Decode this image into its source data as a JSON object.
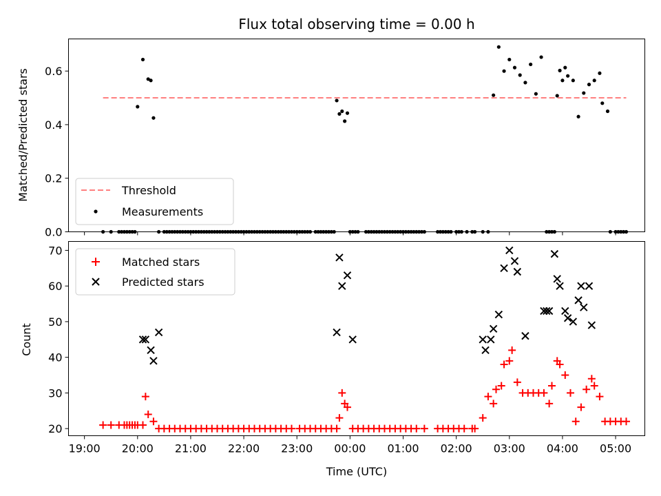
{
  "chart_data": [
    {
      "type": "scatter",
      "title": "Flux total observing time = 0.00 h",
      "ylabel": "Matched/Predicted stars",
      "xlabel": "",
      "xlim": [
        -0.3,
        10.55
      ],
      "ylim": [
        0.0,
        0.72
      ],
      "yticks": [
        0.0,
        0.2,
        0.4,
        0.6
      ],
      "ytick_labels": [
        "0.0",
        "0.2",
        "0.4",
        "0.6"
      ],
      "xticks": [
        0,
        1,
        2,
        3,
        4,
        5,
        6,
        7,
        8,
        9,
        10
      ],
      "grid": false,
      "legend_position": "lower-left",
      "threshold": {
        "name": "Threshold",
        "value": 0.5,
        "x_range": [
          0.35,
          10.2
        ],
        "color": "#ff7f7f"
      },
      "measurements": {
        "name": "Measurements",
        "color": "#000000",
        "x": [
          0.35,
          0.5,
          0.65,
          0.7,
          0.75,
          0.8,
          0.85,
          0.9,
          0.95,
          1.0,
          1.1,
          1.2,
          1.25,
          1.3,
          1.4,
          1.5,
          1.55,
          1.6,
          1.65,
          1.7,
          1.75,
          1.8,
          1.85,
          1.9,
          1.95,
          2.0,
          2.05,
          2.1,
          2.15,
          2.2,
          2.25,
          2.3,
          2.35,
          2.4,
          2.45,
          2.5,
          2.55,
          2.6,
          2.65,
          2.7,
          2.75,
          2.8,
          2.85,
          2.9,
          2.95,
          3.0,
          3.05,
          3.1,
          3.15,
          3.2,
          3.25,
          3.3,
          3.35,
          3.4,
          3.45,
          3.5,
          3.55,
          3.6,
          3.65,
          3.7,
          3.75,
          3.8,
          3.85,
          3.9,
          3.95,
          4.0,
          4.05,
          4.1,
          4.15,
          4.2,
          4.25,
          4.35,
          4.4,
          4.45,
          4.5,
          4.55,
          4.6,
          4.65,
          4.7,
          4.75,
          4.8,
          4.85,
          4.9,
          4.95,
          5.0,
          5.05,
          5.1,
          5.15,
          5.3,
          5.35,
          5.4,
          5.45,
          5.5,
          5.55,
          5.6,
          5.65,
          5.7,
          5.75,
          5.8,
          5.85,
          5.9,
          5.95,
          6.0,
          6.05,
          6.1,
          6.15,
          6.2,
          6.25,
          6.3,
          6.35,
          6.4,
          6.65,
          6.7,
          6.75,
          6.8,
          6.85,
          6.9,
          7.0,
          7.05,
          7.1,
          7.2,
          7.3,
          7.35,
          7.5,
          7.6,
          7.7,
          7.8,
          7.9,
          8.0,
          8.1,
          8.2,
          8.3,
          8.4,
          8.5,
          8.6,
          8.7,
          8.75,
          8.8,
          8.85,
          8.9,
          8.95,
          9.0,
          9.05,
          9.1,
          9.2,
          9.3,
          9.4,
          9.5,
          9.6,
          9.7,
          9.75,
          9.85,
          9.9,
          10.0,
          10.05,
          10.1,
          10.15,
          10.2
        ],
        "y": [
          0,
          0,
          0,
          0,
          0,
          0,
          0,
          0,
          0,
          0.467,
          0.643,
          0.57,
          0.565,
          0.425,
          0,
          0,
          0,
          0,
          0,
          0,
          0,
          0,
          0,
          0,
          0,
          0,
          0,
          0,
          0,
          0,
          0,
          0,
          0,
          0,
          0,
          0,
          0,
          0,
          0,
          0,
          0,
          0,
          0,
          0,
          0,
          0,
          0,
          0,
          0,
          0,
          0,
          0,
          0,
          0,
          0,
          0,
          0,
          0,
          0,
          0,
          0,
          0,
          0,
          0,
          0,
          0,
          0,
          0,
          0,
          0,
          0,
          0,
          0,
          0,
          0,
          0,
          0,
          0,
          0,
          0.49,
          0.44,
          0.45,
          0.413,
          0.443,
          0,
          0,
          0,
          0,
          0,
          0,
          0,
          0,
          0,
          0,
          0,
          0,
          0,
          0,
          0,
          0,
          0,
          0,
          0,
          0,
          0,
          0,
          0,
          0,
          0,
          0,
          0,
          0,
          0,
          0,
          0,
          0,
          0,
          0,
          0,
          0,
          0,
          0,
          0,
          0,
          0,
          0.51,
          0.69,
          0.6,
          0.643,
          0.613,
          0.585,
          0.557,
          0.625,
          0.515,
          0.652,
          0,
          0,
          0,
          0,
          0.508,
          0.602,
          0.565,
          0.613,
          0.582,
          0.565,
          0.43,
          0.518,
          0.55,
          0.565,
          0.592,
          0.48,
          0.45,
          0,
          0,
          0,
          0,
          0,
          0
        ]
      }
    },
    {
      "type": "scatter",
      "title": "",
      "ylabel": "Count",
      "xlabel": "Time (UTC)",
      "xlim": [
        -0.3,
        10.55
      ],
      "ylim": [
        18.0,
        72.5
      ],
      "yticks": [
        20,
        30,
        40,
        50,
        60,
        70
      ],
      "ytick_labels": [
        "20",
        "30",
        "40",
        "50",
        "60",
        "70"
      ],
      "xticks": [
        0,
        1,
        2,
        3,
        4,
        5,
        6,
        7,
        8,
        9,
        10
      ],
      "xtick_labels": [
        "19:00",
        "20:00",
        "21:00",
        "22:00",
        "23:00",
        "00:00",
        "01:00",
        "02:00",
        "03:00",
        "04:00",
        "05:00"
      ],
      "grid": false,
      "legend_position": "top-left",
      "matched": {
        "name": "Matched stars",
        "color": "#ff0000",
        "x": [
          0.35,
          0.5,
          0.65,
          0.75,
          0.8,
          0.85,
          0.9,
          0.95,
          1.0,
          1.1,
          1.15,
          1.2,
          1.3,
          1.4,
          1.5,
          1.6,
          1.7,
          1.8,
          1.9,
          2.0,
          2.1,
          2.2,
          2.3,
          2.4,
          2.5,
          2.6,
          2.7,
          2.8,
          2.9,
          3.0,
          3.1,
          3.2,
          3.3,
          3.4,
          3.5,
          3.6,
          3.7,
          3.8,
          3.9,
          4.05,
          4.15,
          4.25,
          4.35,
          4.45,
          4.55,
          4.65,
          4.75,
          4.8,
          4.85,
          4.9,
          4.95,
          5.05,
          5.15,
          5.25,
          5.35,
          5.45,
          5.55,
          5.65,
          5.75,
          5.85,
          5.95,
          6.05,
          6.15,
          6.25,
          6.4,
          6.65,
          6.75,
          6.85,
          6.95,
          7.05,
          7.15,
          7.3,
          7.35,
          7.5,
          7.6,
          7.7,
          7.75,
          7.85,
          7.9,
          8.0,
          8.05,
          8.15,
          8.25,
          8.35,
          8.45,
          8.55,
          8.65,
          8.75,
          8.8,
          8.9,
          8.95,
          9.05,
          9.15,
          9.25,
          9.35,
          9.45,
          9.55,
          9.6,
          9.7,
          9.8,
          9.9,
          10.0,
          10.1,
          10.2
        ],
        "y": [
          21,
          21,
          21,
          21,
          21,
          21,
          21,
          21,
          21,
          21,
          29,
          24,
          22,
          20,
          20,
          20,
          20,
          20,
          20,
          20,
          20,
          20,
          20,
          20,
          20,
          20,
          20,
          20,
          20,
          20,
          20,
          20,
          20,
          20,
          20,
          20,
          20,
          20,
          20,
          20,
          20,
          20,
          20,
          20,
          20,
          20,
          20,
          23,
          30,
          27,
          26,
          20,
          20,
          20,
          20,
          20,
          20,
          20,
          20,
          20,
          20,
          20,
          20,
          20,
          20,
          20,
          20,
          20,
          20,
          20,
          20,
          20,
          20,
          23,
          29,
          27,
          31,
          32,
          38,
          39,
          42,
          33,
          30,
          30,
          30,
          30,
          30,
          27,
          32,
          39,
          38,
          35,
          30,
          22,
          26,
          31,
          34,
          32,
          29,
          22,
          22,
          22,
          22,
          22
        ]
      },
      "predicted": {
        "name": "Predicted stars",
        "color": "#000000",
        "x": [
          1.1,
          1.15,
          1.25,
          1.3,
          1.4,
          4.75,
          4.8,
          4.85,
          4.95,
          5.05,
          7.5,
          7.55,
          7.65,
          7.7,
          7.8,
          7.9,
          8.0,
          8.1,
          8.15,
          8.3,
          8.65,
          8.7,
          8.75,
          8.85,
          8.9,
          8.95,
          9.05,
          9.1,
          9.2,
          9.3,
          9.35,
          9.4,
          9.5,
          9.55
        ],
        "y": [
          45,
          45,
          42,
          39,
          47,
          47,
          68,
          60,
          63,
          45,
          45,
          42,
          45,
          48,
          52,
          65,
          70,
          67,
          64,
          46,
          53,
          53,
          53,
          69,
          62,
          60,
          53,
          51,
          50,
          56,
          60,
          54,
          60,
          49
        ]
      }
    }
  ]
}
